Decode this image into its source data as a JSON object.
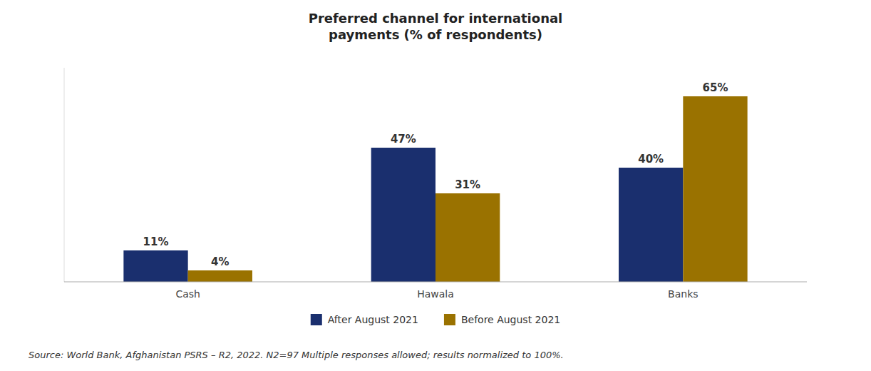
{
  "chart_data": {
    "type": "bar",
    "title": "Preferred channel for international\npayments (% of respondents)",
    "categories": [
      "Cash",
      "Hawala",
      "Banks"
    ],
    "series": [
      {
        "name": "After August 2021",
        "color": "#1a2f6e",
        "values": [
          11,
          47,
          40
        ],
        "value_labels": [
          "11%",
          "47%",
          "40%"
        ]
      },
      {
        "name": "Before August 2021",
        "color": "#9a7200",
        "values": [
          4,
          31,
          65
        ],
        "value_labels": [
          "4%",
          "31%",
          "65%"
        ]
      }
    ],
    "ylim": [
      0,
      75
    ],
    "grid": false,
    "legend": "bottom",
    "data_labels": true,
    "tick_labels": "x",
    "annotations": [
      "Source: World Bank, Afghanistan PSRS – R2, 2022. N2=97 Multiple responses allowed; results normalized to 100%."
    ]
  }
}
